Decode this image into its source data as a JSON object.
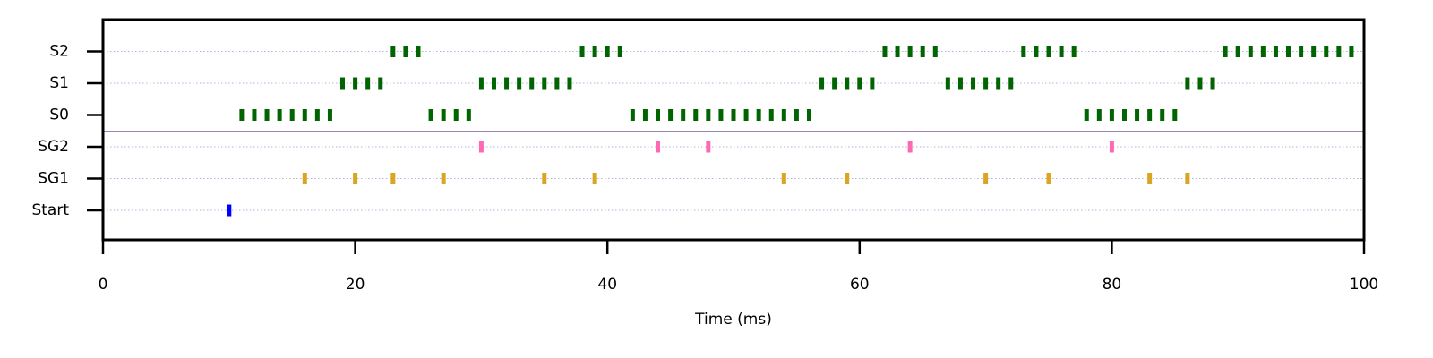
{
  "chart_data": {
    "type": "raster",
    "xlabel": "Time (ms)",
    "xlim": [
      0,
      100
    ],
    "xticks": [
      0,
      20,
      40,
      60,
      80,
      100
    ],
    "grid": true,
    "series": [
      {
        "name": "Start",
        "color": "#0000ff",
        "values": [
          10
        ]
      },
      {
        "name": "SG1",
        "color": "#daa520",
        "values": [
          16,
          20,
          23,
          27,
          35,
          39,
          54,
          59,
          70,
          75,
          83,
          86
        ]
      },
      {
        "name": "SG2",
        "color": "#ff69b4",
        "values": [
          30,
          44,
          48,
          64,
          80
        ]
      },
      {
        "name": "S0",
        "color": "#006400",
        "values": [
          11,
          12,
          13,
          14,
          15,
          16,
          17,
          18,
          26,
          27,
          28,
          29,
          42,
          43,
          44,
          45,
          46,
          47,
          48,
          49,
          50,
          51,
          52,
          53,
          54,
          55,
          56,
          78,
          79,
          80,
          81,
          82,
          83,
          84,
          85
        ]
      },
      {
        "name": "S1",
        "color": "#006400",
        "values": [
          19,
          20,
          21,
          22,
          30,
          31,
          32,
          33,
          34,
          35,
          36,
          37,
          57,
          58,
          59,
          60,
          61,
          67,
          68,
          69,
          70,
          71,
          72,
          86,
          87,
          88
        ]
      },
      {
        "name": "S2",
        "color": "#006400",
        "values": [
          23,
          24,
          25,
          38,
          39,
          40,
          41,
          62,
          63,
          64,
          65,
          66,
          73,
          74,
          75,
          76,
          77,
          89,
          90,
          91,
          92,
          93,
          94,
          95,
          96,
          97,
          98,
          99
        ]
      }
    ]
  }
}
